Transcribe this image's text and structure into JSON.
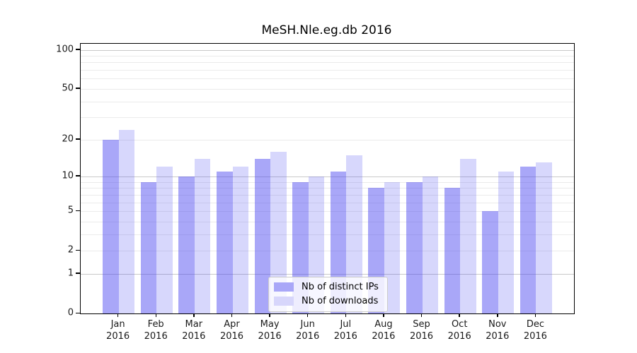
{
  "chart_data": {
    "type": "bar",
    "title": "MeSH.Nle.eg.db 2016",
    "categories": [
      "Jan 2016",
      "Feb 2016",
      "Mar 2016",
      "Apr 2016",
      "May 2016",
      "Jun 2016",
      "Jul 2016",
      "Aug 2016",
      "Sep 2016",
      "Oct 2016",
      "Nov 2016",
      "Dec 2016"
    ],
    "series": [
      {
        "name": "Nb of distinct IPs",
        "values": [
          20,
          9,
          10,
          11,
          14,
          9,
          11,
          8,
          9,
          8,
          5,
          12
        ],
        "fill": "#a9a7f8",
        "opacity": 0.46
      },
      {
        "name": "Nb of downloads",
        "values": [
          24,
          12,
          14,
          12,
          16,
          10,
          15,
          9,
          10,
          14,
          11,
          13
        ],
        "fill": "#d7d6fb",
        "opacity": 0.21
      }
    ],
    "y_scale": "log10(1+value)",
    "ylim": [
      0,
      112
    ],
    "yticks": [
      0,
      1,
      2,
      5,
      10,
      20,
      50,
      100
    ],
    "gridlines": {
      "major": [
        1,
        10,
        100
      ],
      "minor": [
        2,
        3,
        4,
        5,
        6,
        7,
        8,
        9,
        20,
        30,
        40,
        50,
        60,
        70,
        80,
        90
      ]
    },
    "legend_position": "lower center",
    "colors": {
      "bar_base": "#4440f0",
      "grid_major": "#c9c9c9",
      "grid_minor": "#ebebeb",
      "axis": "#000000",
      "text": "#1a1a1a",
      "legend_border": "#cccccc",
      "background": "#ffffff"
    }
  }
}
